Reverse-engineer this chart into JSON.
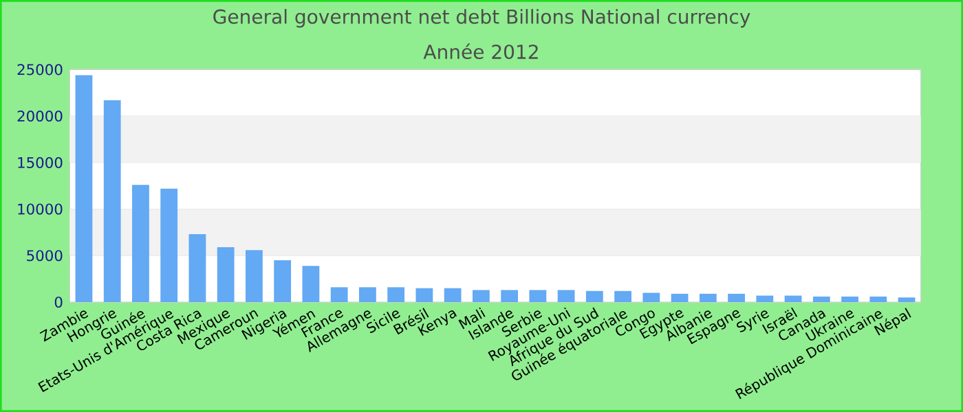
{
  "chart_data": {
    "type": "bar",
    "title": "General government net debt Billions National currency",
    "subtitle": "Année 2012",
    "categories": [
      "Zambie",
      "Hongrie",
      "Guinée",
      "Etats-Unis d'Amérique",
      "Costa Rica",
      "Mexique",
      "Cameroun",
      "Nigeria",
      "Yémen",
      "France",
      "Allemagne",
      "Sicile",
      "Brésil",
      "Kenya",
      "Mali",
      "Islande",
      "Serbie",
      "Royaume-Uni",
      "Afrique du Sud",
      "Guinée équatoriale",
      "Congo",
      "Egypte",
      "Albanie",
      "Espagne",
      "Syrie",
      "Israël",
      "Canada",
      "Ukraine",
      "République Dominicaine",
      "Népal"
    ],
    "values": [
      24400,
      21700,
      12600,
      12200,
      7300,
      5900,
      5600,
      4500,
      3900,
      1600,
      1600,
      1600,
      1500,
      1500,
      1300,
      1300,
      1300,
      1300,
      1200,
      1200,
      1000,
      900,
      900,
      900,
      700,
      700,
      600,
      600,
      600,
      500
    ],
    "color": "#63a9f4",
    "ylim": [
      0,
      25000
    ],
    "yticks": [
      0,
      5000,
      10000,
      15000,
      20000,
      25000
    ],
    "grid": "y"
  }
}
